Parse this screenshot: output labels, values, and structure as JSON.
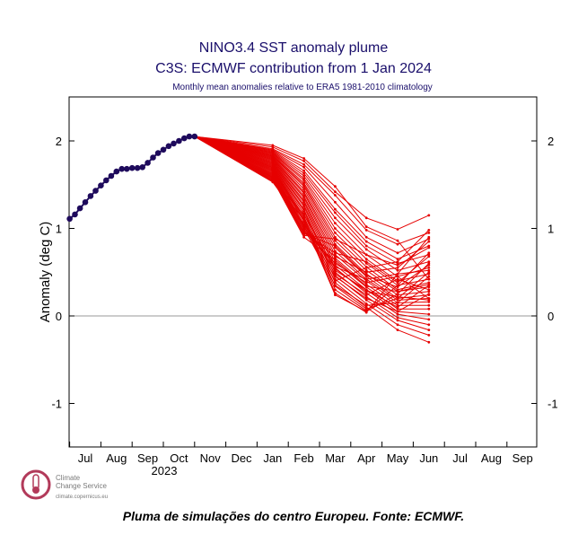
{
  "chart_data": {
    "type": "line",
    "title": "NINO3.4 SST anomaly plume",
    "subtitle": "C3S: ECMWF contribution from 1 Jan 2024",
    "subsubtitle": "Monthly mean anomalies relative to ERA5 1981-2010 climatology",
    "ylabel": "Anomaly (deg C)",
    "xlabel": "",
    "ylim": [
      -1.5,
      2.5
    ],
    "yticks": [
      -1,
      0,
      1,
      2
    ],
    "year_label": "2023",
    "categories": [
      "Jul",
      "Aug",
      "Sep",
      "Oct",
      "Nov",
      "Dec",
      "Jan",
      "Feb",
      "Mar",
      "Apr",
      "May",
      "Jun",
      "Jul",
      "Aug",
      "Sep"
    ],
    "zero_line": true,
    "observed": {
      "color": "#1e0a5c",
      "points": [
        [
          -0.5,
          1.11
        ],
        [
          -0.33,
          1.16
        ],
        [
          -0.17,
          1.23
        ],
        [
          0,
          1.3
        ],
        [
          0.17,
          1.37
        ],
        [
          0.33,
          1.43
        ],
        [
          0.5,
          1.49
        ],
        [
          0.67,
          1.55
        ],
        [
          0.83,
          1.6
        ],
        [
          1,
          1.65
        ],
        [
          1.17,
          1.68
        ],
        [
          1.33,
          1.68
        ],
        [
          1.5,
          1.69
        ],
        [
          1.67,
          1.69
        ],
        [
          1.83,
          1.7
        ],
        [
          2,
          1.75
        ],
        [
          2.17,
          1.81
        ],
        [
          2.33,
          1.86
        ],
        [
          2.5,
          1.9
        ],
        [
          2.67,
          1.94
        ],
        [
          2.83,
          1.97
        ],
        [
          3,
          2.0
        ],
        [
          3.17,
          2.03
        ],
        [
          3.33,
          2.05
        ],
        [
          3.5,
          2.05
        ]
      ]
    },
    "forecast": {
      "color": "#e60000",
      "start": [
        3.5,
        2.05
      ],
      "members": [
        [
          1.95,
          1.8,
          1.48,
          1.02,
          0.86,
          0.42
        ],
        [
          1.93,
          1.77,
          1.42,
          1.12,
          0.99,
          1.15
        ],
        [
          1.91,
          1.73,
          1.38,
          0.98,
          0.82,
          0.95
        ],
        [
          1.9,
          1.7,
          1.3,
          0.9,
          0.72,
          0.88
        ],
        [
          1.89,
          1.66,
          1.22,
          0.85,
          0.65,
          0.8
        ],
        [
          1.88,
          1.63,
          1.18,
          0.8,
          0.6,
          0.7
        ],
        [
          1.87,
          1.6,
          1.12,
          0.76,
          0.52,
          0.62
        ],
        [
          1.86,
          1.57,
          1.06,
          0.7,
          0.45,
          0.55
        ],
        [
          1.85,
          1.55,
          1.0,
          0.65,
          0.4,
          0.48
        ],
        [
          1.84,
          1.52,
          0.95,
          0.6,
          0.35,
          0.42
        ],
        [
          1.83,
          1.5,
          0.9,
          0.56,
          0.3,
          0.38
        ],
        [
          1.82,
          1.48,
          0.86,
          0.52,
          0.28,
          0.33
        ],
        [
          1.81,
          1.45,
          0.82,
          0.48,
          0.24,
          0.28
        ],
        [
          1.8,
          1.42,
          0.78,
          0.45,
          0.2,
          0.24
        ],
        [
          1.79,
          1.4,
          0.74,
          0.42,
          0.18,
          0.2
        ],
        [
          1.78,
          1.37,
          0.7,
          0.4,
          0.15,
          0.16
        ],
        [
          1.77,
          1.35,
          0.66,
          0.36,
          0.12,
          0.12
        ],
        [
          1.76,
          1.32,
          0.62,
          0.33,
          0.08,
          0.08
        ],
        [
          1.75,
          1.3,
          0.58,
          0.3,
          0.05,
          0.02
        ],
        [
          1.74,
          1.27,
          0.55,
          0.26,
          0.02,
          -0.04
        ],
        [
          1.73,
          1.25,
          0.5,
          0.22,
          -0.02,
          -0.1
        ],
        [
          1.72,
          1.22,
          0.46,
          0.18,
          -0.05,
          -0.16
        ],
        [
          1.71,
          1.2,
          0.42,
          0.14,
          -0.1,
          -0.22
        ],
        [
          1.7,
          1.17,
          0.38,
          0.1,
          -0.16,
          -0.3
        ],
        [
          1.69,
          1.14,
          0.34,
          0.08,
          0.2,
          0.5
        ],
        [
          1.68,
          1.12,
          0.3,
          0.06,
          0.35,
          0.72
        ],
        [
          1.67,
          1.1,
          0.26,
          0.04,
          0.48,
          0.9
        ],
        [
          1.66,
          1.08,
          0.24,
          0.05,
          0.25,
          0.6
        ],
        [
          1.65,
          1.05,
          0.52,
          0.3,
          0.1,
          0.35
        ],
        [
          1.64,
          1.03,
          0.45,
          0.2,
          0.05,
          0.25
        ],
        [
          1.63,
          1.02,
          0.4,
          0.55,
          0.62,
          0.98
        ],
        [
          1.62,
          1.0,
          0.35,
          0.12,
          0.15,
          0.45
        ],
        [
          1.61,
          0.98,
          0.6,
          0.38,
          0.45,
          0.2
        ],
        [
          1.6,
          0.96,
          0.68,
          0.5,
          0.55,
          0.85
        ],
        [
          1.59,
          0.95,
          0.72,
          0.62,
          0.38,
          0.68
        ],
        [
          1.58,
          0.94,
          0.8,
          0.46,
          0.33,
          0.58
        ],
        [
          1.57,
          0.92,
          0.88,
          0.7,
          0.58,
          0.78
        ],
        [
          1.56,
          0.9,
          0.64,
          0.34,
          0.28,
          0.36
        ],
        [
          1.55,
          1.16,
          0.54,
          0.28,
          0.22,
          0.18
        ],
        [
          1.54,
          1.1,
          0.48,
          0.24,
          0.42,
          0.3
        ],
        [
          1.53,
          1.04,
          0.56,
          0.42,
          0.48,
          0.52
        ]
      ]
    }
  },
  "logo": {
    "line1": "Climate",
    "line2": "Change Service",
    "url": "climate.copernicus.eu"
  },
  "caption": "Pluma de simulações do centro Europeu. Fonte: ECMWF."
}
